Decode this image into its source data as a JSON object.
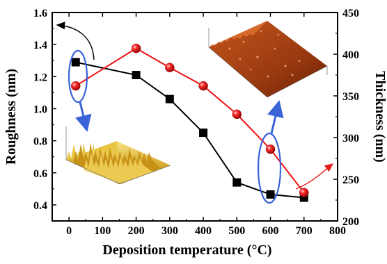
{
  "chart_data": {
    "type": "line",
    "xlabel": "Deposition temperature (°C)",
    "ylabel_left": "Roughness (nm)",
    "ylabel_right": "Thickness (nm)",
    "xlim": [
      -50,
      800
    ],
    "ylim_left": [
      0.3,
      1.6
    ],
    "ylim_right": [
      200,
      450
    ],
    "x_ticks": [
      0,
      100,
      200,
      300,
      400,
      500,
      600,
      700,
      800
    ],
    "y_left_ticks": [
      0.4,
      0.6,
      0.8,
      1.0,
      1.2,
      1.4,
      1.6
    ],
    "y_right_ticks": [
      200,
      250,
      300,
      350,
      400,
      450
    ],
    "x_tick_labels": [
      "0",
      "100",
      "200",
      "300",
      "400",
      "500",
      "600",
      "700",
      "800"
    ],
    "y_left_tick_labels": [
      "0.4",
      "0.6",
      "0.8",
      "1.0",
      "1.2",
      "1.4",
      "1.6"
    ],
    "y_right_tick_labels": [
      "200",
      "250",
      "300",
      "350",
      "400",
      "450"
    ],
    "grid": false,
    "series": [
      {
        "axis": "left",
        "marker": "square",
        "color": "#000000",
        "x": [
          20,
          200,
          300,
          400,
          500,
          600,
          700
        ],
        "values": [
          1.29,
          1.21,
          1.06,
          0.85,
          0.54,
          0.465,
          0.445
        ]
      },
      {
        "axis": "right",
        "marker": "sphere",
        "color": "#ee1111",
        "x": [
          20,
          200,
          300,
          400,
          500,
          600,
          700
        ],
        "values": [
          362,
          407,
          384,
          362,
          328,
          286,
          234
        ]
      }
    ],
    "insets": [
      {
        "description_icon": "afm-surface-rough",
        "linked_x": 20
      },
      {
        "description_icon": "afm-surface-smooth",
        "linked_x": 600
      }
    ]
  }
}
